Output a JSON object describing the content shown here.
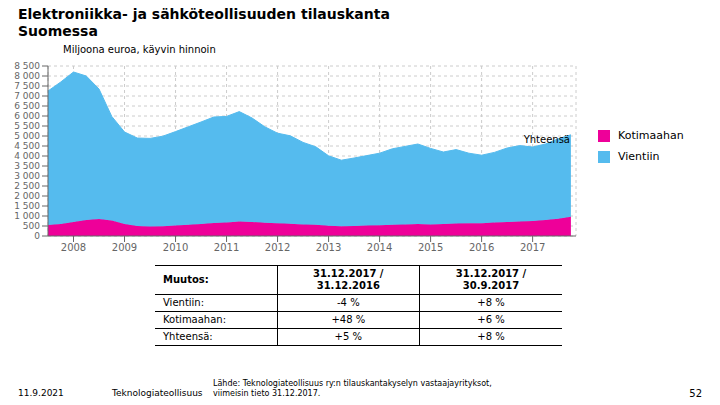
{
  "chart_data": {
    "type": "area",
    "stacked": true,
    "grid": true,
    "legend": "right",
    "title": "Elektroniikka- ja sähköteollisuuden tilauskanta\nSuomessa",
    "subtitle": "Miljoona euroa, käyvin hinnoin",
    "annotations": [
      "Yhteensä"
    ],
    "table": {
      "header": [
        "Muutos:",
        "31.12.2017 / 31.12.2016",
        "31.12.2017 / 30.9.2017"
      ],
      "rows": [
        [
          "Vientiin:",
          "-4 %",
          "+8 %"
        ],
        [
          "Kotimaahan:",
          "+48 %",
          "+6 %"
        ],
        [
          "Yhteensä:",
          "+5 %",
          "+8 %"
        ]
      ]
    },
    "footer": [
      "11.9.2021",
      "Teknologiateollisuus",
      "Lähde: Teknologiateollisuus ry:n tilauskantakyselyn vastaajayrityksot,\nviimeisin tieto 31.12.2017.",
      "52"
    ],
    "xlim": [
      2007.5,
      2017.85
    ],
    "xticks": [
      2008,
      2009,
      2010,
      2011,
      2012,
      2013,
      2014,
      2015,
      2016,
      2017
    ],
    "ylim": [
      0,
      8500
    ],
    "yticks": [
      0,
      500,
      {
        "value": 1000,
        "label": "1 000"
      },
      {
        "value": 1500,
        "label": "1 500"
      },
      {
        "value": 2000,
        "label": "2 000"
      },
      {
        "value": 2500,
        "label": "2 500"
      },
      {
        "value": 3000,
        "label": "3 000"
      },
      {
        "value": 3500,
        "label": "3 500"
      },
      {
        "value": 4000,
        "label": "4 000"
      },
      {
        "value": 4500,
        "label": "4 500"
      },
      {
        "value": 5000,
        "label": "5 000"
      },
      {
        "value": 5500,
        "label": "5 500"
      },
      {
        "value": 6000,
        "label": "6 000"
      },
      {
        "value": 6500,
        "label": "6 500"
      },
      {
        "value": 7000,
        "label": "7 000"
      },
      {
        "value": 7500,
        "label": "7 500"
      },
      {
        "value": 8000,
        "label": "8 000"
      },
      {
        "value": 8500,
        "label": "8 500"
      }
    ],
    "x": [
      2007.5,
      2007.75,
      2008.0,
      2008.25,
      2008.5,
      2008.75,
      2009.0,
      2009.25,
      2009.5,
      2009.75,
      2010.0,
      2010.25,
      2010.5,
      2010.75,
      2011.0,
      2011.25,
      2011.5,
      2011.75,
      2012.0,
      2012.25,
      2012.5,
      2012.75,
      2013.0,
      2013.25,
      2013.5,
      2013.75,
      2014.0,
      2014.25,
      2014.5,
      2014.75,
      2015.0,
      2015.25,
      2015.5,
      2015.75,
      2016.0,
      2016.25,
      2016.5,
      2016.75,
      2017.0,
      2017.25,
      2017.5,
      2017.75
    ],
    "series": [
      {
        "name": "Kotimaahan",
        "color": "#EE0099",
        "values": [
          550,
          600,
          700,
          800,
          850,
          780,
          600,
          500,
          480,
          490,
          520,
          560,
          600,
          650,
          680,
          720,
          700,
          660,
          640,
          610,
          580,
          560,
          510,
          490,
          500,
          520,
          540,
          560,
          580,
          600,
          580,
          600,
          620,
          640,
          640,
          680,
          700,
          720,
          750,
          800,
          860,
          960
        ]
      },
      {
        "name": "Vientiin",
        "color": "#55BBEE",
        "values": [
          6700,
          7100,
          7500,
          7200,
          6500,
          5200,
          4600,
          4400,
          4400,
          4500,
          4700,
          4900,
          5100,
          5300,
          5300,
          5500,
          5200,
          4800,
          4500,
          4400,
          4100,
          3900,
          3500,
          3300,
          3400,
          3500,
          3600,
          3800,
          3900,
          4000,
          3800,
          3600,
          3700,
          3500,
          3400,
          3500,
          3700,
          3800,
          3700,
          3800,
          4000,
          4100
        ]
      }
    ]
  }
}
